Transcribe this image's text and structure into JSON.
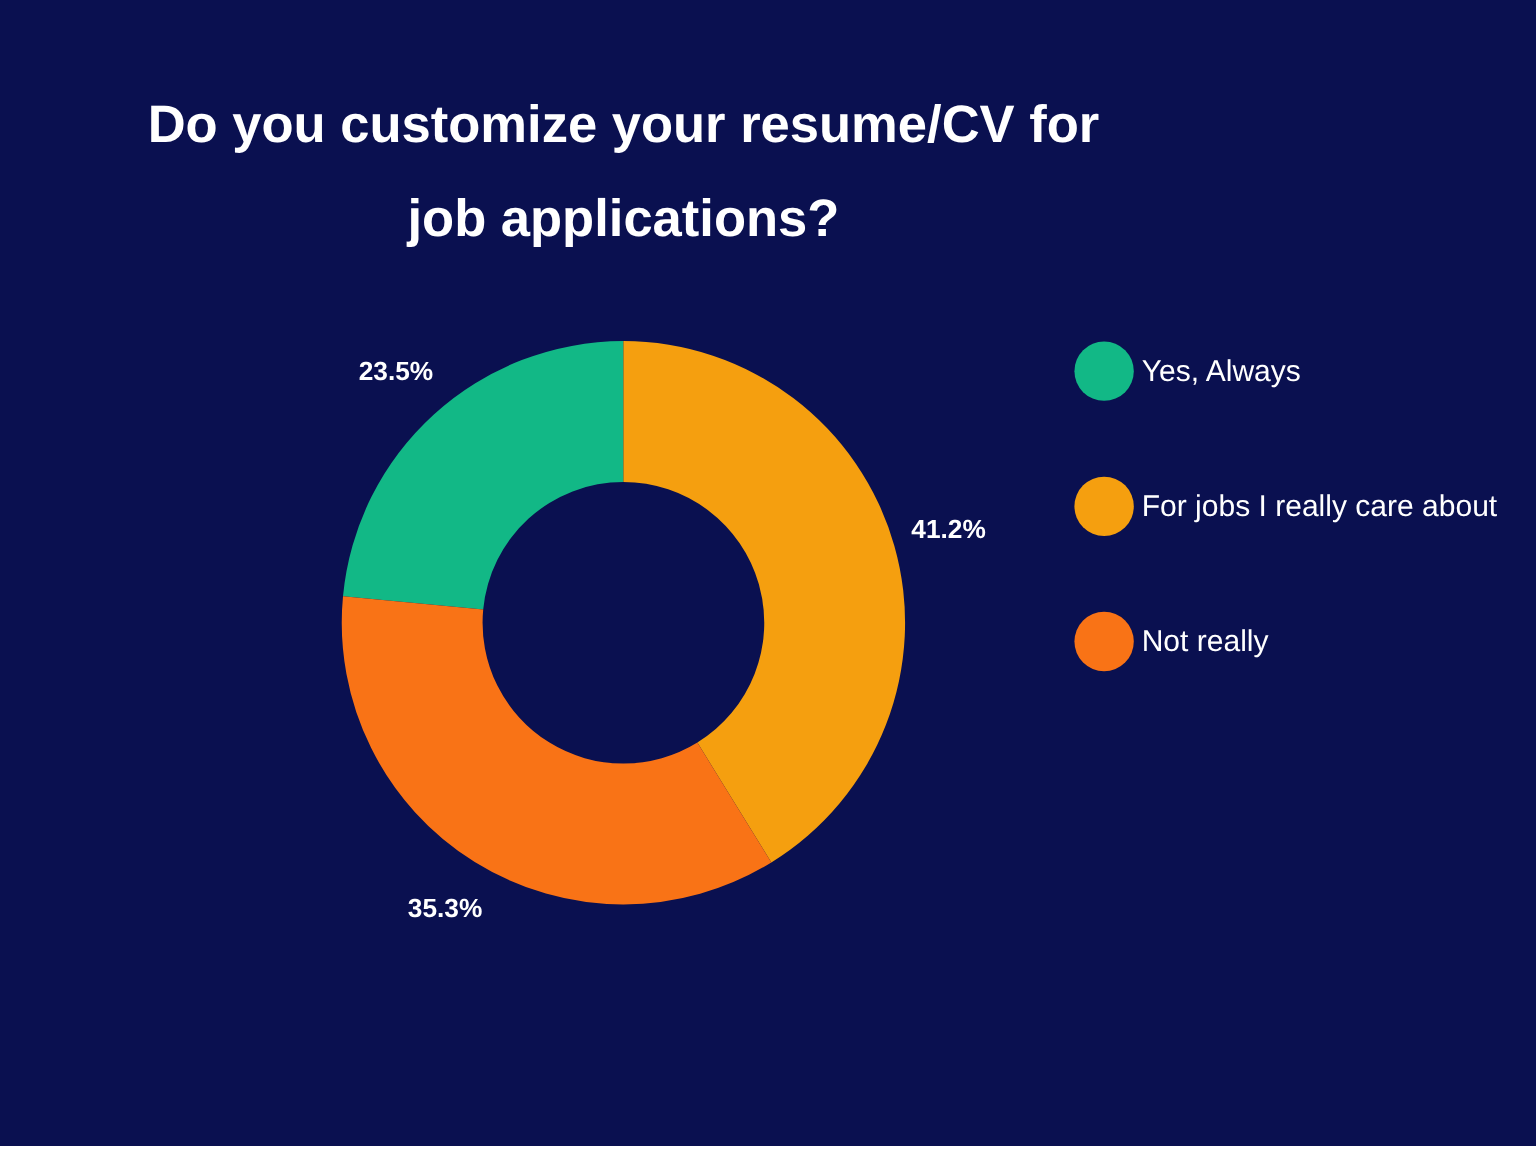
{
  "chart_data": {
    "type": "donut",
    "title": "Do you customize your resume/CV for job applications?",
    "categories": [
      "Yes, Always",
      "For jobs I really care about",
      "Not really"
    ],
    "values": [
      23.5,
      41.2,
      35.3
    ],
    "colors": [
      "#12b886",
      "#f59f0f",
      "#f97316"
    ],
    "value_labels": [
      "23.5%",
      "41.2%",
      "35.3%"
    ],
    "legend": "right"
  }
}
